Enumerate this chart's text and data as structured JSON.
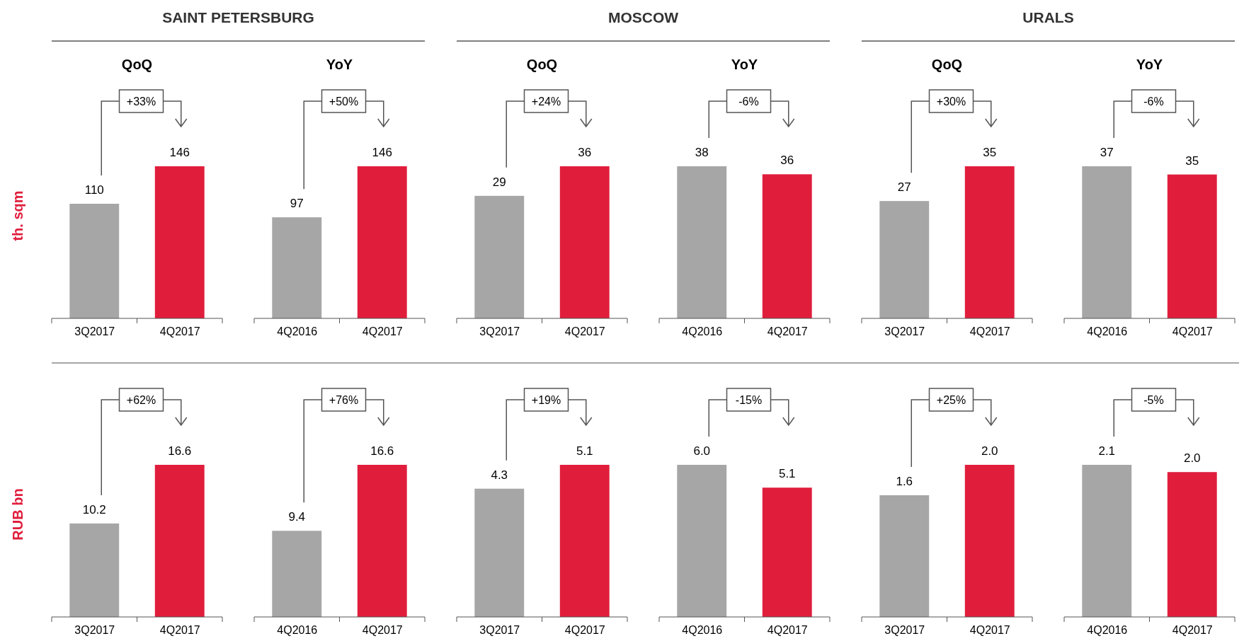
{
  "chart_data": [
    {
      "type": "bar",
      "title": "SAINT PETERSBURG",
      "subtitle": "QoQ",
      "ylabel": "th. sqm",
      "categories": [
        "3Q2017",
        "4Q2017"
      ],
      "values": [
        110,
        146
      ],
      "colors": [
        "#a6a6a6",
        "#e01e3c"
      ],
      "data_labels": true,
      "annotations": [
        "+33%"
      ]
    },
    {
      "type": "bar",
      "subtitle": "YoY",
      "categories": [
        "4Q2016",
        "4Q2017"
      ],
      "values": [
        97,
        146
      ],
      "colors": [
        "#a6a6a6",
        "#e01e3c"
      ],
      "data_labels": true,
      "annotations": [
        "+50%"
      ]
    },
    {
      "type": "bar",
      "title": "MOSCOW",
      "subtitle": "QoQ",
      "categories": [
        "3Q2017",
        "4Q2017"
      ],
      "values": [
        29,
        36
      ],
      "colors": [
        "#a6a6a6",
        "#e01e3c"
      ],
      "data_labels": true,
      "annotations": [
        "+24%"
      ]
    },
    {
      "type": "bar",
      "subtitle": "YoY",
      "categories": [
        "4Q2016",
        "4Q2017"
      ],
      "values": [
        38,
        36
      ],
      "colors": [
        "#a6a6a6",
        "#e01e3c"
      ],
      "data_labels": true,
      "annotations": [
        "-6%"
      ]
    },
    {
      "type": "bar",
      "title": "URALS",
      "subtitle": "QoQ",
      "categories": [
        "3Q2017",
        "4Q2017"
      ],
      "values": [
        27,
        35
      ],
      "colors": [
        "#a6a6a6",
        "#e01e3c"
      ],
      "data_labels": true,
      "annotations": [
        "+30%"
      ]
    },
    {
      "type": "bar",
      "subtitle": "YoY",
      "categories": [
        "4Q2016",
        "4Q2017"
      ],
      "values": [
        37,
        35
      ],
      "colors": [
        "#a6a6a6",
        "#e01e3c"
      ],
      "data_labels": true,
      "annotations": [
        "-6%"
      ]
    },
    {
      "type": "bar",
      "ylabel": "RUB bn",
      "categories": [
        "3Q2017",
        "4Q2017"
      ],
      "values": [
        10.2,
        16.6
      ],
      "value_labels": [
        "10.2",
        "16.6"
      ],
      "colors": [
        "#a6a6a6",
        "#e01e3c"
      ],
      "annotations": [
        "+62%"
      ]
    },
    {
      "type": "bar",
      "categories": [
        "4Q2016",
        "4Q2017"
      ],
      "values": [
        9.4,
        16.6
      ],
      "value_labels": [
        "9.4",
        "16.6"
      ],
      "colors": [
        "#a6a6a6",
        "#e01e3c"
      ],
      "annotations": [
        "+76%"
      ]
    },
    {
      "type": "bar",
      "categories": [
        "3Q2017",
        "4Q2017"
      ],
      "values": [
        4.3,
        5.1
      ],
      "value_labels": [
        "4.3",
        "5.1"
      ],
      "colors": [
        "#a6a6a6",
        "#e01e3c"
      ],
      "annotations": [
        "+19%"
      ]
    },
    {
      "type": "bar",
      "categories": [
        "4Q2016",
        "4Q2017"
      ],
      "values": [
        6.0,
        5.1
      ],
      "value_labels": [
        "6.0",
        "5.1"
      ],
      "colors": [
        "#a6a6a6",
        "#e01e3c"
      ],
      "annotations": [
        "-15%"
      ]
    },
    {
      "type": "bar",
      "categories": [
        "3Q2017",
        "4Q2017"
      ],
      "values": [
        1.6,
        2.0
      ],
      "value_labels": [
        "1.6",
        "2.0"
      ],
      "colors": [
        "#a6a6a6",
        "#e01e3c"
      ],
      "annotations": [
        "+25%"
      ]
    },
    {
      "type": "bar",
      "categories": [
        "4Q2016",
        "4Q2017"
      ],
      "values": [
        2.1,
        2.0
      ],
      "value_labels": [
        "2.1",
        "2.0"
      ],
      "colors": [
        "#a6a6a6",
        "#e01e3c"
      ],
      "annotations": [
        "-5%"
      ]
    }
  ]
}
